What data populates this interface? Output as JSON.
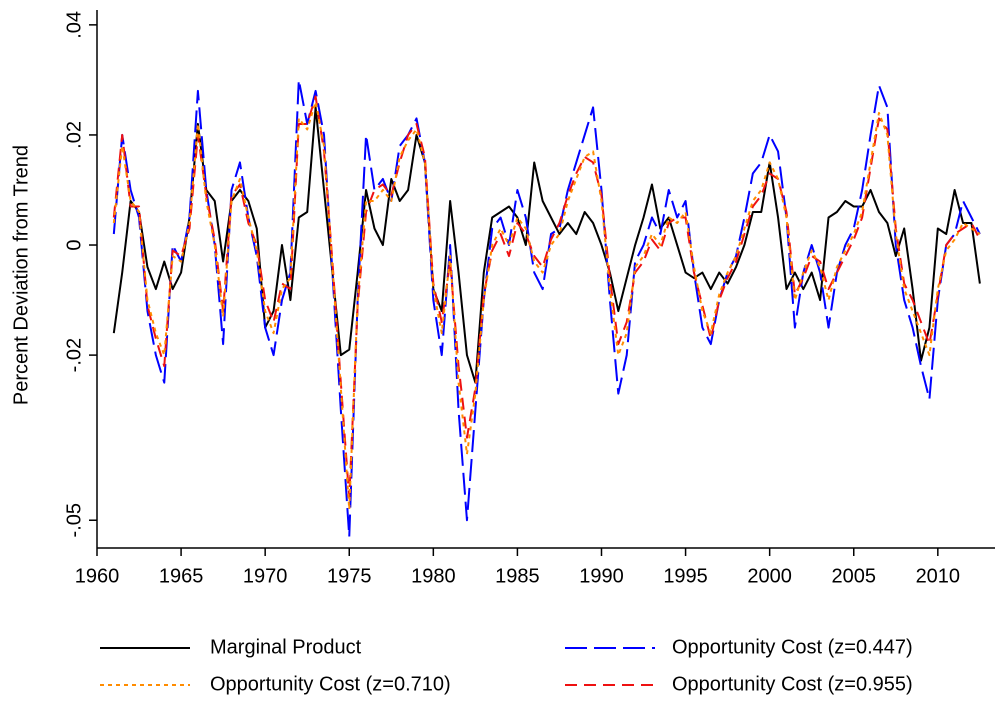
{
  "chart_data": {
    "type": "line",
    "y_label": "Percent Deviation from Trend",
    "xlim": [
      1960,
      2013.4
    ],
    "ylim": [
      -0.0545,
      0.0427
    ],
    "xticks": [
      1960,
      1965,
      1970,
      1975,
      1980,
      1985,
      1990,
      1995,
      2000,
      2005,
      2010
    ],
    "yticks": [
      {
        "value": 0.04,
        "label": ".04"
      },
      {
        "value": 0.02,
        "label": ".02"
      },
      0,
      {
        "value": -0.02,
        "label": "-.02"
      },
      {
        "value": -0.05,
        "label": "-.05"
      }
    ],
    "grid": false,
    "x": [
      1961,
      1961.5,
      1962,
      1962.5,
      1963,
      1963.5,
      1964,
      1964.5,
      1965,
      1965.5,
      1966,
      1966.5,
      1967,
      1967.5,
      1968,
      1968.5,
      1969,
      1969.5,
      1970,
      1970.5,
      1971,
      1971.5,
      1972,
      1972.5,
      1973,
      1973.5,
      1974,
      1974.5,
      1975,
      1975.5,
      1976,
      1976.5,
      1977,
      1977.5,
      1978,
      1978.5,
      1979,
      1979.5,
      1980,
      1980.5,
      1981,
      1981.5,
      1982,
      1982.5,
      1983,
      1983.5,
      1984,
      1984.5,
      1985,
      1985.5,
      1986,
      1986.5,
      1987,
      1987.5,
      1988,
      1988.5,
      1989,
      1989.5,
      1990,
      1990.5,
      1991,
      1991.5,
      1992,
      1992.5,
      1993,
      1993.5,
      1994,
      1994.5,
      1995,
      1995.5,
      1996,
      1996.5,
      1997,
      1997.5,
      1998,
      1998.5,
      1999,
      1999.5,
      2000,
      2000.5,
      2001,
      2001.5,
      2002,
      2002.5,
      2003,
      2003.5,
      2004,
      2004.5,
      2005,
      2005.5,
      2006,
      2006.5,
      2007,
      2007.5,
      2008,
      2008.5,
      2009,
      2009.5,
      2010,
      2010.5,
      2011,
      2011.5,
      2012,
      2012.5
    ],
    "series": [
      {
        "name": "Marginal Product",
        "color": "#000000",
        "dash": "solid",
        "values": [
          -0.016,
          -0.005,
          0.008,
          0.006,
          -0.004,
          -0.008,
          -0.003,
          -0.008,
          -0.005,
          0.005,
          0.022,
          0.01,
          0.008,
          -0.003,
          0.008,
          0.01,
          0.008,
          0.003,
          -0.015,
          -0.012,
          0.0,
          -0.01,
          0.005,
          0.006,
          0.025,
          0.01,
          -0.005,
          -0.02,
          -0.019,
          -0.005,
          0.01,
          0.003,
          0.0,
          0.012,
          0.008,
          0.01,
          0.02,
          0.015,
          -0.008,
          -0.012,
          0.008,
          -0.005,
          -0.02,
          -0.025,
          -0.005,
          0.005,
          0.006,
          0.007,
          0.005,
          0.0,
          0.015,
          0.008,
          0.005,
          0.002,
          0.004,
          0.002,
          0.006,
          0.004,
          0.0,
          -0.005,
          -0.012,
          -0.006,
          0.0,
          0.005,
          0.011,
          0.003,
          0.005,
          0.0,
          -0.005,
          -0.006,
          -0.005,
          -0.008,
          -0.005,
          -0.007,
          -0.004,
          0.0,
          0.006,
          0.006,
          0.015,
          0.005,
          -0.008,
          -0.005,
          -0.008,
          -0.005,
          -0.01,
          0.005,
          0.006,
          0.008,
          0.007,
          0.007,
          0.01,
          0.006,
          0.004,
          -0.002,
          0.003,
          -0.008,
          -0.021,
          -0.015,
          0.003,
          0.002,
          0.01,
          0.004,
          0.004,
          -0.007
        ]
      },
      {
        "name": "Opportunity Cost (z=0.447)",
        "color": "#0000ff",
        "dash": "longdash",
        "values": [
          0.002,
          0.02,
          0.01,
          0.005,
          -0.012,
          -0.02,
          -0.025,
          0.0,
          -0.003,
          0.005,
          0.028,
          0.01,
          0.0,
          -0.018,
          0.01,
          0.015,
          0.005,
          -0.002,
          -0.015,
          -0.02,
          -0.01,
          -0.005,
          0.03,
          0.022,
          0.028,
          0.02,
          -0.005,
          -0.03,
          -0.053,
          -0.01,
          0.02,
          0.01,
          0.012,
          0.008,
          0.018,
          0.02,
          0.023,
          0.015,
          -0.01,
          -0.02,
          0.0,
          -0.03,
          -0.05,
          -0.03,
          -0.01,
          0.003,
          0.005,
          0.0,
          0.01,
          0.005,
          -0.005,
          -0.008,
          0.002,
          0.003,
          0.01,
          0.015,
          0.02,
          0.025,
          0.01,
          -0.01,
          -0.027,
          -0.02,
          -0.003,
          0.0,
          0.005,
          0.002,
          0.01,
          0.005,
          0.008,
          -0.005,
          -0.015,
          -0.018,
          -0.01,
          -0.005,
          -0.002,
          0.005,
          0.013,
          0.015,
          0.02,
          0.017,
          0.005,
          -0.015,
          -0.005,
          0.0,
          -0.005,
          -0.015,
          -0.005,
          0.0,
          0.003,
          0.01,
          0.02,
          0.029,
          0.025,
          0.0,
          -0.01,
          -0.015,
          -0.022,
          -0.028,
          -0.01,
          0.0,
          0.002,
          0.008,
          0.005,
          0.002
        ]
      },
      {
        "name": "Opportunity Cost (z=0.710)",
        "color": "#ff8c00",
        "dash": "dot",
        "values": [
          0.004,
          0.018,
          0.008,
          0.006,
          -0.01,
          -0.016,
          -0.02,
          -0.002,
          -0.003,
          0.004,
          0.022,
          0.008,
          0.0,
          -0.013,
          0.008,
          0.012,
          0.005,
          -0.001,
          -0.012,
          -0.016,
          -0.008,
          -0.006,
          0.023,
          0.021,
          0.026,
          0.018,
          -0.004,
          -0.026,
          -0.048,
          -0.01,
          0.008,
          0.008,
          0.01,
          0.008,
          0.016,
          0.019,
          0.021,
          0.015,
          -0.008,
          -0.016,
          -0.002,
          -0.025,
          -0.038,
          -0.027,
          -0.01,
          0.0,
          0.003,
          0.0,
          0.005,
          0.003,
          -0.003,
          -0.005,
          0.0,
          0.002,
          0.008,
          0.012,
          0.016,
          0.017,
          0.008,
          -0.008,
          -0.02,
          -0.016,
          -0.004,
          -0.002,
          0.002,
          0.0,
          0.005,
          0.004,
          0.006,
          -0.004,
          -0.012,
          -0.016,
          -0.009,
          -0.005,
          -0.002,
          0.003,
          0.008,
          0.01,
          0.015,
          0.012,
          0.005,
          -0.01,
          -0.005,
          -0.001,
          -0.004,
          -0.01,
          -0.004,
          -0.001,
          0.002,
          0.006,
          0.015,
          0.024,
          0.02,
          0.002,
          -0.008,
          -0.012,
          -0.016,
          -0.02,
          -0.008,
          -0.001,
          0.001,
          0.004,
          0.003,
          0.002
        ]
      },
      {
        "name": "Opportunity Cost (z=0.955)",
        "color": "#ee1111",
        "dash": "dash",
        "values": [
          0.005,
          0.02,
          0.007,
          0.007,
          -0.011,
          -0.017,
          -0.022,
          -0.001,
          -0.002,
          0.003,
          0.02,
          0.009,
          0.001,
          -0.012,
          0.009,
          0.011,
          0.004,
          0.0,
          -0.01,
          -0.014,
          -0.007,
          -0.008,
          0.022,
          0.022,
          0.027,
          0.017,
          -0.003,
          -0.025,
          -0.046,
          -0.011,
          0.006,
          0.01,
          0.011,
          0.009,
          0.015,
          0.02,
          0.022,
          0.016,
          -0.007,
          -0.014,
          -0.003,
          -0.022,
          -0.035,
          -0.026,
          -0.009,
          -0.001,
          0.002,
          -0.002,
          0.004,
          0.002,
          -0.002,
          -0.004,
          0.001,
          0.004,
          0.009,
          0.013,
          0.016,
          0.015,
          0.009,
          -0.006,
          -0.018,
          -0.014,
          -0.005,
          -0.003,
          0.001,
          -0.001,
          0.004,
          0.005,
          0.005,
          -0.005,
          -0.011,
          -0.017,
          -0.01,
          -0.006,
          -0.003,
          0.002,
          0.007,
          0.009,
          0.013,
          0.012,
          0.006,
          -0.009,
          -0.006,
          -0.002,
          -0.003,
          -0.008,
          -0.005,
          -0.002,
          0.001,
          0.005,
          0.014,
          0.023,
          0.021,
          0.003,
          -0.007,
          -0.01,
          -0.014,
          -0.018,
          -0.009,
          0.0,
          0.002,
          0.003,
          0.004,
          0.001
        ]
      }
    ]
  }
}
